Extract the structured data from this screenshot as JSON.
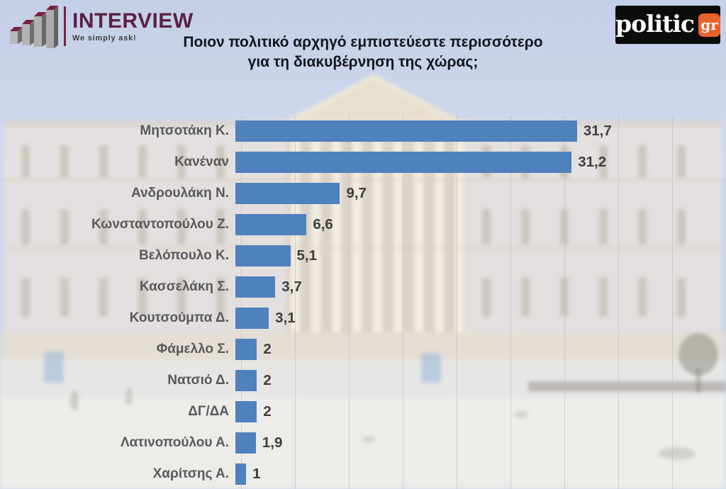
{
  "header": {
    "interview_logo": {
      "name": "INTERVIEW",
      "tagline": "We simply ask!",
      "icon": "bar-chart-3d-icon",
      "brand_color": "#5b2047"
    },
    "politic_logo": {
      "name": "politic",
      "tld": "gr",
      "badge_color": "#e8622d",
      "box_color": "#0c0c0c"
    }
  },
  "title": {
    "line1": "Ποιον πολιτικό αρχηγό εμπιστεύεστε περισσότερο",
    "line2": "για τη διακυβέρνηση της χώρας;"
  },
  "chart_data": {
    "type": "bar",
    "orientation": "horizontal",
    "title": "Ποιον πολιτικό αρχηγό εμπιστεύεστε περισσότερο για τη διακυβέρνηση της χώρας;",
    "categories": [
      "Μητσοτάκη Κ.",
      "Κανέναν",
      "Ανδρουλάκη Ν.",
      "Κωνσταντοπούλου Ζ.",
      "Βελόπουλο Κ.",
      "Κασσελάκη Σ.",
      "Κουτσούμπα Δ.",
      "Φάμελλο Σ.",
      "Νατσιό Δ.",
      "ΔΓ/ΔΑ",
      "Λατινοπούλου Α.",
      "Χαρίτσης Α."
    ],
    "values": [
      31.7,
      31.2,
      9.7,
      6.6,
      5.1,
      3.7,
      3.1,
      2,
      2,
      2,
      1.9,
      1
    ],
    "value_labels": [
      "31,7",
      "31,2",
      "9,7",
      "6,6",
      "5,1",
      "3,7",
      "3,1",
      "2",
      "2",
      "2",
      "1,9",
      "1"
    ],
    "xlabel": "",
    "ylabel": "",
    "xlim": [
      0,
      45
    ],
    "grid": true,
    "gridline_step": 5,
    "legend": false,
    "bar_color": "#4f81bd",
    "value_label_color": "#3e3e40",
    "category_label_color": "#58595b",
    "background": "faded photo of the Hellenic Parliament building"
  }
}
